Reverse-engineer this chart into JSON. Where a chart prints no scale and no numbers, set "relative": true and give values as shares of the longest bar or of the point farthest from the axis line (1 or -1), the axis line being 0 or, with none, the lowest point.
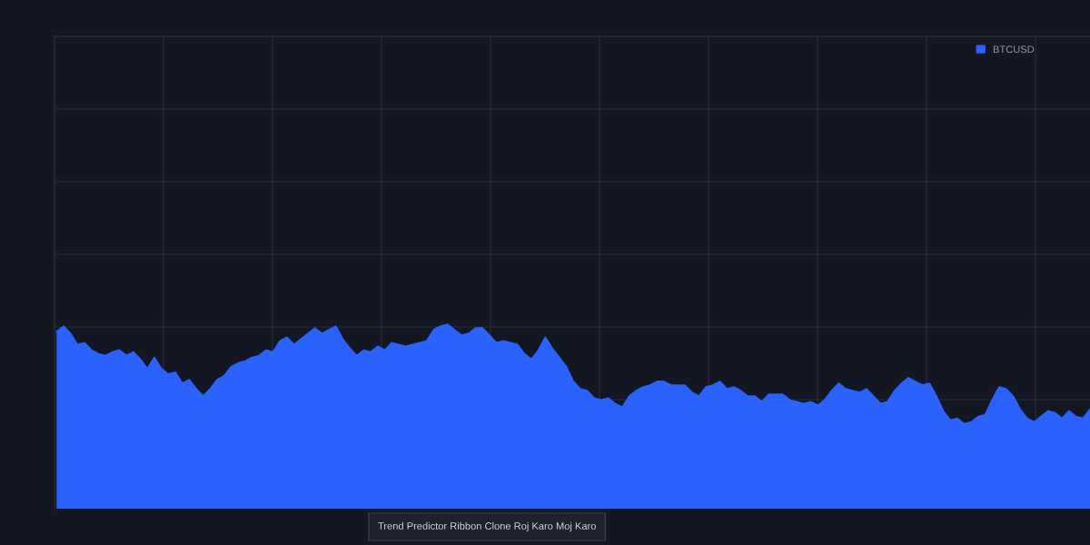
{
  "chart_data": {
    "type": "area",
    "relative": true,
    "grid": true,
    "legend": "top right",
    "categories": [
      null,
      null,
      null,
      null,
      null,
      null,
      null,
      null,
      null,
      null,
      null,
      null,
      null,
      null,
      null,
      null,
      null,
      null,
      null,
      null,
      null,
      null,
      null,
      null,
      null,
      null,
      null,
      null,
      null,
      null,
      null,
      null,
      null,
      null,
      null,
      null,
      null,
      null,
      null,
      null,
      null,
      null,
      null,
      null,
      null,
      null,
      null,
      null,
      null,
      null,
      null,
      null,
      null,
      null,
      null,
      null,
      null,
      null,
      null,
      null,
      null,
      null,
      null,
      null,
      null,
      null,
      null,
      null,
      null,
      null,
      null,
      null,
      null,
      null,
      null,
      null,
      null,
      null,
      null,
      null,
      null,
      null,
      null,
      null,
      null,
      null,
      null,
      null,
      null,
      null,
      null,
      null,
      null,
      null,
      null,
      null,
      null,
      null,
      null,
      null,
      null,
      null,
      null,
      null,
      null,
      null,
      null,
      null,
      null,
      null,
      null,
      null,
      null,
      null,
      null,
      null,
      null,
      null,
      null,
      null,
      null,
      null,
      null,
      null,
      null,
      null,
      null,
      null,
      null,
      null,
      null,
      null,
      null,
      null,
      null,
      null,
      null,
      null,
      null,
      null,
      null,
      null,
      null,
      null,
      null,
      null,
      null,
      null,
      null
    ],
    "series": [
      {
        "name": "BTCUSD",
        "color": "#2962ff",
        "values": [
          0.96,
          0.99,
          0.95,
          0.89,
          0.9,
          0.86,
          0.84,
          0.83,
          0.85,
          0.86,
          0.83,
          0.85,
          0.81,
          0.76,
          0.82,
          0.76,
          0.73,
          0.74,
          0.68,
          0.7,
          0.65,
          0.61,
          0.65,
          0.7,
          0.72,
          0.77,
          0.79,
          0.8,
          0.82,
          0.83,
          0.86,
          0.85,
          0.91,
          0.93,
          0.89,
          0.92,
          0.95,
          0.98,
          0.95,
          0.97,
          0.99,
          0.92,
          0.87,
          0.83,
          0.86,
          0.85,
          0.88,
          0.86,
          0.9,
          0.89,
          0.88,
          0.89,
          0.9,
          0.91,
          0.97,
          0.99,
          1,
          0.97,
          0.94,
          0.95,
          0.98,
          0.98,
          0.94,
          0.9,
          0.91,
          0.9,
          0.89,
          0.84,
          0.81,
          0.86,
          0.93,
          0.87,
          0.82,
          0.77,
          0.69,
          0.65,
          0.64,
          0.6,
          0.59,
          0.6,
          0.57,
          0.55,
          0.61,
          0.64,
          0.66,
          0.67,
          0.69,
          0.69,
          0.67,
          0.67,
          0.67,
          0.63,
          0.61,
          0.66,
          0.67,
          0.69,
          0.65,
          0.66,
          0.64,
          0.61,
          0.61,
          0.58,
          0.62,
          0.62,
          0.62,
          0.59,
          0.58,
          0.57,
          0.58,
          0.56,
          0.59,
          0.64,
          0.68,
          0.65,
          0.64,
          0.63,
          0.65,
          0.61,
          0.57,
          0.58,
          0.64,
          0.68,
          0.71,
          0.69,
          0.67,
          0.68,
          0.61,
          0.53,
          0.48,
          0.49,
          0.46,
          0.47,
          0.5,
          0.51,
          0.59,
          0.66,
          0.65,
          0.61,
          0.54,
          0.49,
          0.47,
          0.5,
          0.53,
          0.52,
          0.49,
          0.53,
          0.5,
          0.49,
          0.54
        ]
      }
    ],
    "annotations": [
      "Trend Predictor Ribbon Clone Roj Karo Moj Karo"
    ]
  }
}
